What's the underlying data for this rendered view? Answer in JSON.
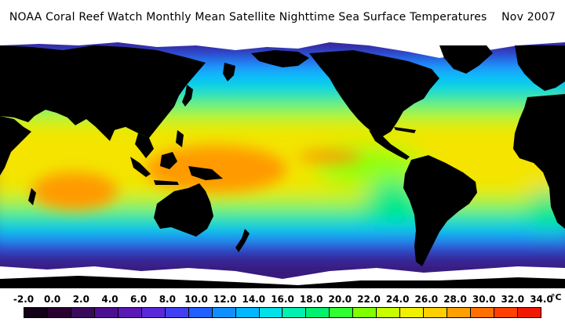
{
  "title": "NOAA Coral Reef Watch Monthly Mean Satellite Nighttime Sea Surface Temperatures    Nov 2007",
  "colorbar": {
    "unit": "°C",
    "tick_labels": [
      "-2.0",
      "0.0",
      "2.0",
      "4.0",
      "6.0",
      "8.0",
      "10.0",
      "12.0",
      "14.0",
      "16.0",
      "18.0",
      "20.0",
      "22.0",
      "24.0",
      "26.0",
      "28.0",
      "30.0",
      "32.0",
      "34.0"
    ],
    "colors": [
      "#120018",
      "#2a0030",
      "#3a0a5a",
      "#4b1090",
      "#5a18b4",
      "#5a28d8",
      "#4040f0",
      "#2060ff",
      "#1090ff",
      "#00b8ff",
      "#00e0e8",
      "#00f0b0",
      "#00f070",
      "#30ff30",
      "#80ff00",
      "#c8ff00",
      "#f0f000",
      "#ffd000",
      "#ffa000",
      "#ff7000",
      "#ff4000",
      "#f01800"
    ]
  },
  "map": {
    "land_color": "#000000",
    "ice_color": "#ffffff",
    "ocean_colors": {
      "polar": "#3a1a7a",
      "subpolar": "#2a4cff",
      "cool": "#00c8ff",
      "temperate": "#00e888",
      "subtropical": "#90ff10",
      "tropical": "#f4e400",
      "warm_pool": "#ff9a00"
    }
  }
}
